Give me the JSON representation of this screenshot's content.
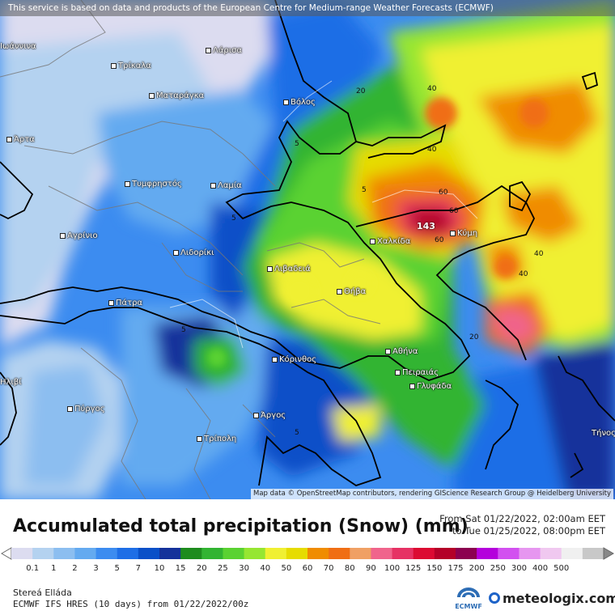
{
  "attribution_top": "This service is based on data and products of the European Centre for Medium-range Weather Forecasts (ECMWF)",
  "attribution_bottom": "Map data © OpenStreetMap contributors, rendering GIScience Research Group @ Heidelberg University",
  "cities": [
    {
      "name": "Λάρισα"
    },
    {
      "name": "Τρίκαλα"
    },
    {
      "name": "Ματαράγκα"
    },
    {
      "name": "Βόλος"
    },
    {
      "name": "Άρτα"
    },
    {
      "name": "Τυμφρηστός"
    },
    {
      "name": "Λαμία"
    },
    {
      "name": "Αγρίνιο"
    },
    {
      "name": "Λιδορίκι"
    },
    {
      "name": "Λιβαδειά"
    },
    {
      "name": "Χαλκίδα"
    },
    {
      "name": "Κύμη"
    },
    {
      "name": "Θήβα"
    },
    {
      "name": "Πάτρα"
    },
    {
      "name": "Κόρινθος"
    },
    {
      "name": "Αθήνα"
    },
    {
      "name": "Πειραιάς"
    },
    {
      "name": "Γλυφάδα"
    },
    {
      "name": "Πύργος"
    },
    {
      "name": "Άργος"
    },
    {
      "name": "Τρίπολη"
    },
    {
      "name": "Ιωάννινα"
    },
    {
      "name": "Ηλιβί"
    },
    {
      "name": "Τήνος"
    }
  ],
  "contour_labels": [
    "5",
    "5",
    "5",
    "5",
    "20",
    "20",
    "40",
    "40",
    "40",
    "40",
    "60",
    "60",
    "60",
    "5"
  ],
  "max_value": "143",
  "title": "Accumulated total precipitation (Snow) (mm)",
  "valid_from": "From Sat 01/22/2022, 02:00am EET",
  "valid_to": "to Tue 01/25/2022, 08:00pm EET",
  "legend": {
    "values": [
      "0.1",
      "1",
      "2",
      "3",
      "5",
      "7",
      "10",
      "15",
      "20",
      "25",
      "30",
      "40",
      "50",
      "60",
      "70",
      "80",
      "90",
      "100",
      "125",
      "150",
      "175",
      "200",
      "250",
      "300",
      "400",
      "500"
    ],
    "colors": [
      "#dcdcf0",
      "#b4d2f0",
      "#8cbef0",
      "#64aaf0",
      "#3c8cf0",
      "#1e6ee6",
      "#0a50c8",
      "#14329b",
      "#1e8c1e",
      "#32b432",
      "#5ad232",
      "#96e632",
      "#f0f032",
      "#e6dc00",
      "#f08c00",
      "#f06e14",
      "#f0a064",
      "#f0648c",
      "#e63264",
      "#dc0a32",
      "#b40028",
      "#8c0050",
      "#b400dc",
      "#d250f0",
      "#e696f0",
      "#f0c8f0",
      "#f0f0f0",
      "#c8c8c8"
    ]
  },
  "region": "Stereá Elláda",
  "model": "ECMWF IFS HRES (10 days) from 01/22/2022/00z",
  "brand": "meteologix.com",
  "ecmwf_label": "ECMWF"
}
